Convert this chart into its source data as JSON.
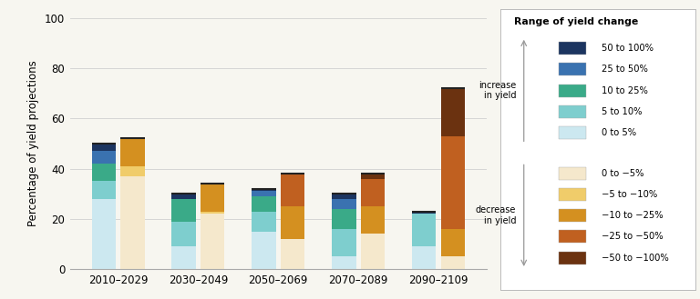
{
  "periods": [
    "2010–2029",
    "2030–2049",
    "2050–2069",
    "2070–2089",
    "2090–2109"
  ],
  "inc_keys": [
    "0 to 5%",
    "5 to 10%",
    "10 to 25%",
    "25 to 50%",
    "50 to 100%"
  ],
  "dec_keys": [
    "0 to -5%",
    "-5 to -10%",
    "-10 to -25%",
    "-25 to -50%",
    "-50 to -100%"
  ],
  "inc_colors": [
    "#cce8f0",
    "#7ecece",
    "#3aaa88",
    "#3a72b0",
    "#1c3560"
  ],
  "dec_colors": [
    "#f5e8cc",
    "#f0cc6a",
    "#d49020",
    "#c06020",
    "#6b3210"
  ],
  "inc_data": {
    "0 to 5%": [
      28,
      9,
      15,
      5,
      9
    ],
    "5 to 10%": [
      7,
      10,
      8,
      11,
      13
    ],
    "10 to 25%": [
      7,
      9,
      6,
      8,
      0
    ],
    "25 to 50%": [
      5,
      0,
      2,
      4,
      0
    ],
    "50 to 100%": [
      3,
      2,
      1,
      2,
      1
    ]
  },
  "dec_data": {
    "0 to -5%": [
      37,
      22,
      12,
      14,
      5
    ],
    "-5 to -10%": [
      4,
      1,
      0,
      0,
      0
    ],
    "-10 to -25%": [
      11,
      11,
      13,
      11,
      11
    ],
    "-25 to -50%": [
      0,
      0,
      13,
      11,
      37
    ],
    "-50 to -100%": [
      0,
      0,
      0,
      2,
      19
    ]
  },
  "ylim": [
    0,
    100
  ],
  "yticks": [
    0,
    20,
    40,
    60,
    80,
    100
  ],
  "ylabel": "Percentage of yield projections",
  "legend_title": "Range of yield change",
  "inc_legend_labels": [
    "50 to 100%",
    "25 to 50%",
    "10 to 25%",
    "5 to 10%",
    "0 to 5%"
  ],
  "dec_legend_labels": [
    "0 to −5%",
    "−5 to −10%",
    "−10 to −25%",
    "−25 to −50%",
    "−50 to −100%"
  ],
  "inc_label": "increase\nin yield",
  "dec_label": "decrease\nin yield",
  "bg_color": "#f7f6f0",
  "grid_color": "#d0d0d0",
  "bar_width": 0.3,
  "bar_gap": 0.06
}
